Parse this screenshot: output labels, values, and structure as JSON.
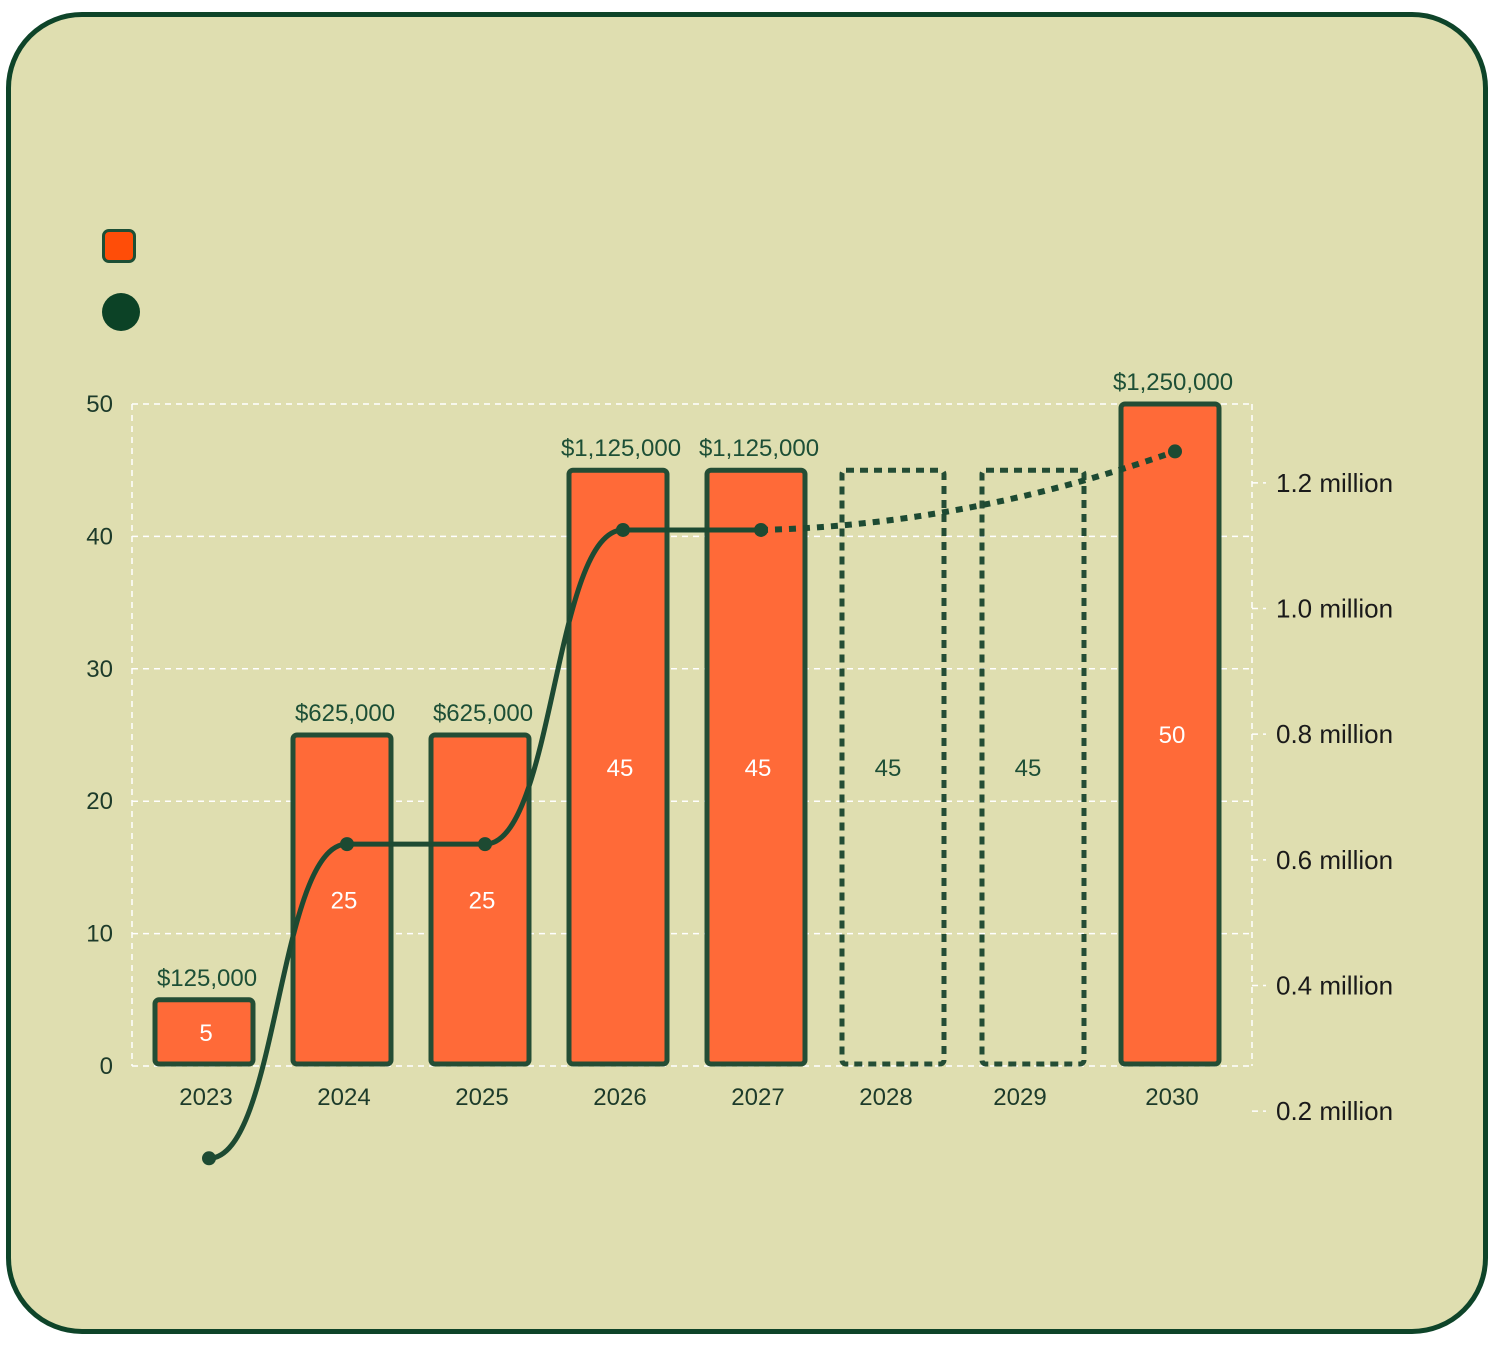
{
  "legend": {
    "bars_label": "",
    "line_label": ""
  },
  "colors": {
    "card_bg": "#dfdeb0",
    "card_border": "#0e4429",
    "bar_fill": "#ff6a38",
    "bar_stroke": "#244d35",
    "line": "#1d4a32",
    "grid": "#ffffff"
  },
  "chart_data": {
    "type": "bar",
    "title": "",
    "xlabel": "",
    "ylabel": "",
    "categories": [
      "2023",
      "2024",
      "2025",
      "2026",
      "2027",
      "2028",
      "2029",
      "2030"
    ],
    "series": [
      {
        "style": "bar",
        "axis": "left",
        "values": [
          5,
          25,
          25,
          45,
          45,
          45,
          45,
          50
        ],
        "value_labels": [
          "5",
          "25",
          "25",
          "45",
          "45",
          "45",
          "45",
          "50"
        ],
        "projected": [
          false,
          false,
          false,
          false,
          false,
          true,
          true,
          false
        ]
      },
      {
        "style": "line",
        "axis": "right",
        "values": [
          125000,
          625000,
          625000,
          1125000,
          1125000,
          null,
          null,
          1250000
        ],
        "value_labels": [
          "$125,000",
          "$625,000",
          "$625,000",
          "$1,125,000",
          "$1,125,000",
          "",
          "",
          "$1,250,000"
        ],
        "projected_from": "2027"
      }
    ],
    "left_axis": {
      "ylim": [
        0,
        50
      ],
      "ticks": [
        "0",
        "10",
        "20",
        "30",
        "40",
        "50"
      ]
    },
    "right_axis": {
      "ylim": [
        100000,
        1300000
      ],
      "ticks": [
        {
          "value": 200000,
          "label": "0.2 million"
        },
        {
          "value": 400000,
          "label": "0.4 million"
        },
        {
          "value": 600000,
          "label": "0.6 million"
        },
        {
          "value": 800000,
          "label": "0.8 million"
        },
        {
          "value": 1000000,
          "label": "1.0 million"
        },
        {
          "value": 1200000,
          "label": "1.2 million"
        }
      ]
    },
    "grid": true,
    "legend_position": "top-left"
  }
}
